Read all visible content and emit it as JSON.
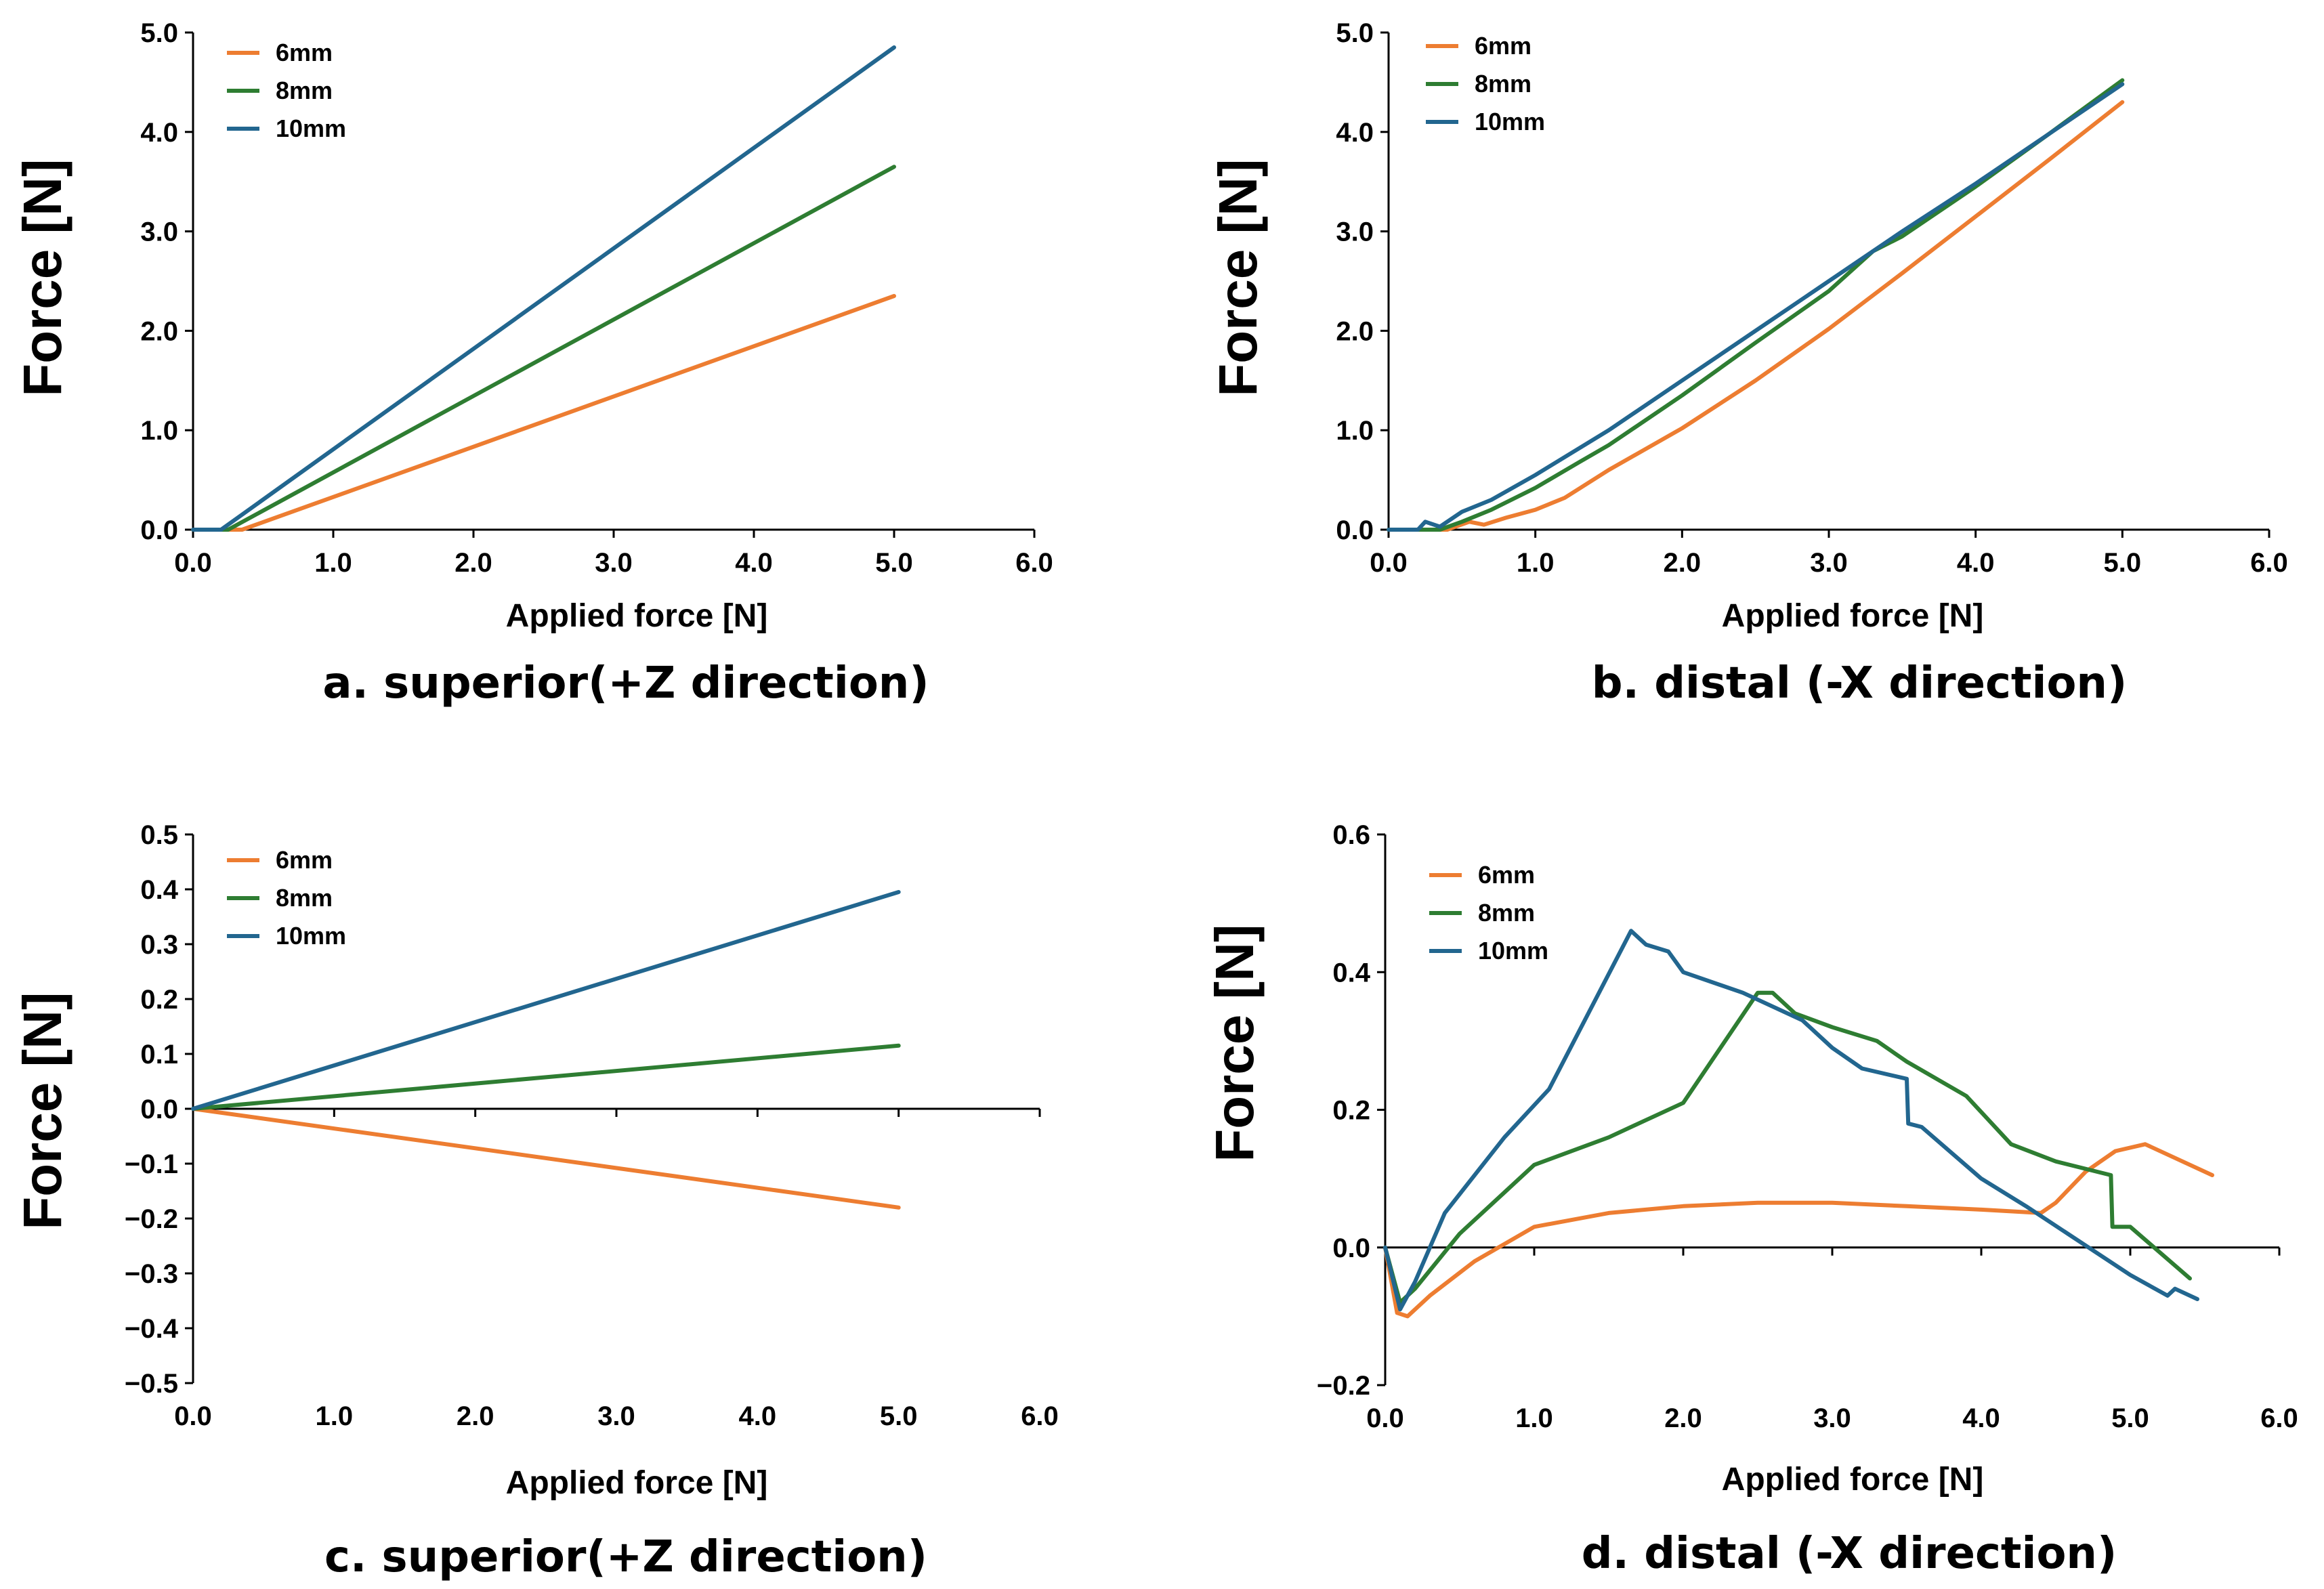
{
  "colors": {
    "6mm": "#ED7D31",
    "8mm": "#2E7D32",
    "10mm": "#22668F"
  },
  "chart_data": [
    {
      "panel": "a",
      "type": "line",
      "title": "a. superior(+Z direction)",
      "xlabel": "Applied force [N]",
      "ylabel": "Force [N]",
      "xlim": [
        0,
        6
      ],
      "ylim": [
        0,
        5
      ],
      "xticks": [
        "0.0",
        "1.0",
        "2.0",
        "3.0",
        "4.0",
        "5.0",
        "6.0"
      ],
      "yticks": [
        "0.0",
        "1.0",
        "2.0",
        "3.0",
        "4.0",
        "5.0"
      ],
      "legend_position": "top-left",
      "series": [
        {
          "name": "6mm",
          "x": [
            0.0,
            0.35,
            5.0
          ],
          "y": [
            0.0,
            0.0,
            2.35
          ]
        },
        {
          "name": "8mm",
          "x": [
            0.0,
            0.25,
            5.0
          ],
          "y": [
            0.0,
            0.0,
            3.65
          ]
        },
        {
          "name": "10mm",
          "x": [
            0.0,
            0.2,
            5.0
          ],
          "y": [
            0.0,
            0.0,
            4.85
          ]
        }
      ]
    },
    {
      "panel": "b",
      "type": "line",
      "title": "b. distal (-X direction)",
      "xlabel": "Applied force [N]",
      "ylabel": "Force [N]",
      "xlim": [
        0,
        6
      ],
      "ylim": [
        0,
        5
      ],
      "xticks": [
        "0.0",
        "1.0",
        "2.0",
        "3.0",
        "4.0",
        "5.0",
        "6.0"
      ],
      "yticks": [
        "0.0",
        "1.0",
        "2.0",
        "3.0",
        "4.0",
        "5.0"
      ],
      "legend_position": "top-left",
      "series": [
        {
          "name": "6mm",
          "x": [
            0.0,
            0.4,
            0.55,
            0.65,
            0.8,
            1.0,
            1.2,
            1.5,
            2.0,
            2.5,
            3.0,
            3.5,
            4.0,
            4.5,
            5.0
          ],
          "y": [
            0.0,
            0.0,
            0.08,
            0.05,
            0.12,
            0.2,
            0.32,
            0.6,
            1.02,
            1.5,
            2.02,
            2.58,
            3.15,
            3.72,
            4.3
          ]
        },
        {
          "name": "8mm",
          "x": [
            0.0,
            0.35,
            0.5,
            0.7,
            1.0,
            1.3,
            1.5,
            2.0,
            2.5,
            3.0,
            3.3,
            3.5,
            4.0,
            4.5,
            5.0
          ],
          "y": [
            0.0,
            0.0,
            0.08,
            0.2,
            0.42,
            0.68,
            0.85,
            1.35,
            1.88,
            2.4,
            2.8,
            2.95,
            3.45,
            3.98,
            4.52
          ]
        },
        {
          "name": "10mm",
          "x": [
            0.0,
            0.2,
            0.25,
            0.35,
            0.5,
            0.7,
            1.0,
            1.5,
            2.0,
            2.5,
            3.0,
            3.5,
            4.0,
            4.5,
            5.0
          ],
          "y": [
            0.0,
            0.0,
            0.08,
            0.03,
            0.18,
            0.3,
            0.55,
            1.0,
            1.5,
            2.0,
            2.5,
            3.0,
            3.48,
            3.98,
            4.48
          ]
        }
      ]
    },
    {
      "panel": "c",
      "type": "line",
      "title": "c. superior(+Z direction)",
      "xlabel": "Applied force [N]",
      "ylabel": "Force [N]",
      "xlim": [
        0,
        6
      ],
      "ylim": [
        -0.5,
        0.5
      ],
      "xticks": [
        "0.0",
        "1.0",
        "2.0",
        "3.0",
        "4.0",
        "5.0",
        "6.0"
      ],
      "yticks": [
        "−0.5",
        "−0.4",
        "−0.3",
        "−0.2",
        "−0.1",
        "0.0",
        "0.1",
        "0.2",
        "0.3",
        "0.4",
        "0.5"
      ],
      "legend_position": "top-left",
      "series": [
        {
          "name": "6mm",
          "x": [
            0.0,
            5.0
          ],
          "y": [
            0.0,
            -0.18
          ]
        },
        {
          "name": "8mm",
          "x": [
            0.0,
            5.0
          ],
          "y": [
            0.0,
            0.115
          ]
        },
        {
          "name": "10mm",
          "x": [
            0.0,
            5.0
          ],
          "y": [
            0.0,
            0.395
          ]
        }
      ]
    },
    {
      "panel": "d",
      "type": "line",
      "title": "d. distal (-X direction)",
      "xlabel": "Applied force [N]",
      "ylabel": "Force [N]",
      "xlim": [
        0,
        6
      ],
      "ylim": [
        -0.2,
        0.6
      ],
      "xticks": [
        "0.0",
        "1.0",
        "2.0",
        "3.0",
        "4.0",
        "5.0",
        "6.0"
      ],
      "yticks": [
        "−0.2",
        "0.0",
        "0.2",
        "0.4",
        "0.6"
      ],
      "legend_position": "top-left",
      "series": [
        {
          "name": "6mm",
          "x": [
            0.0,
            0.08,
            0.15,
            0.3,
            0.6,
            1.0,
            1.5,
            2.0,
            2.5,
            3.0,
            3.5,
            4.0,
            4.4,
            4.5,
            4.7,
            4.9,
            5.1,
            5.55
          ],
          "y": [
            0.0,
            -0.095,
            -0.1,
            -0.07,
            -0.02,
            0.03,
            0.05,
            0.06,
            0.065,
            0.065,
            0.06,
            0.055,
            0.05,
            0.065,
            0.11,
            0.14,
            0.15,
            0.105
          ]
        },
        {
          "name": "8mm",
          "x": [
            0.0,
            0.1,
            0.2,
            0.5,
            0.8,
            1.0,
            1.5,
            1.75,
            2.0,
            2.5,
            2.6,
            2.75,
            3.0,
            3.3,
            3.5,
            3.9,
            4.2,
            4.5,
            4.87,
            4.88,
            5.0,
            5.4
          ],
          "y": [
            0.0,
            -0.08,
            -0.06,
            0.02,
            0.08,
            0.12,
            0.16,
            0.185,
            0.21,
            0.37,
            0.37,
            0.34,
            0.32,
            0.3,
            0.27,
            0.22,
            0.15,
            0.125,
            0.105,
            0.03,
            0.03,
            -0.045
          ]
        },
        {
          "name": "10mm",
          "x": [
            0.0,
            0.1,
            0.2,
            0.4,
            0.8,
            1.1,
            1.65,
            1.75,
            1.9,
            2.0,
            2.4,
            2.8,
            3.0,
            3.2,
            3.5,
            3.51,
            3.6,
            4.0,
            4.3,
            5.0,
            5.25,
            5.3,
            5.45
          ],
          "y": [
            0.0,
            -0.09,
            -0.05,
            0.05,
            0.16,
            0.23,
            0.46,
            0.44,
            0.43,
            0.4,
            0.37,
            0.33,
            0.29,
            0.26,
            0.245,
            0.18,
            0.175,
            0.1,
            0.06,
            -0.04,
            -0.07,
            -0.06,
            -0.075
          ]
        }
      ]
    }
  ]
}
